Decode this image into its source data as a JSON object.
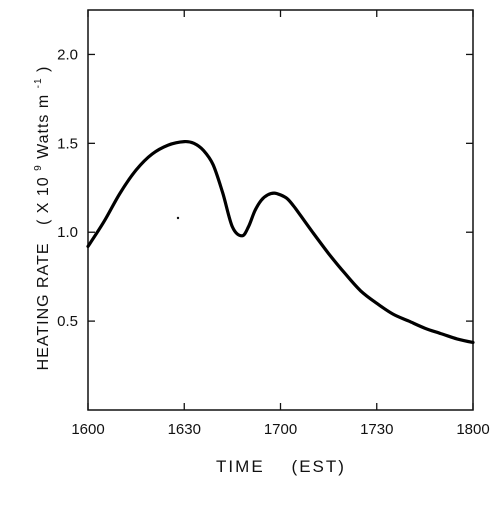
{
  "chart_data": {
    "type": "line",
    "title": "",
    "xlabel": "TIME    (EST)",
    "ylabel": "HEATING RATE",
    "ylabel_units_prefix": "( X 10",
    "ylabel_units_exp": "9",
    "ylabel_units_mid": " Watts m",
    "ylabel_units_exp2": "-1",
    "ylabel_units_suffix": ")",
    "xlim": [
      "1600",
      "1800"
    ],
    "ylim": [
      0,
      2.25
    ],
    "grid": false,
    "x_ticks": [
      "1600",
      "1630",
      "1700",
      "1730",
      "1800"
    ],
    "y_ticks": [
      0.5,
      1.0,
      1.5,
      2.0
    ],
    "y_tick_labels": [
      "0.5",
      "1.0",
      "1.5",
      "2.0"
    ],
    "series": [
      {
        "x": [
          "1600",
          "1605",
          "1610",
          "1615",
          "1620",
          "1625",
          "1630",
          "1633",
          "1636",
          "1639",
          "1642",
          "1645",
          "1648",
          "1650",
          "1652",
          "1654",
          "1656",
          "1658",
          "1700",
          "1702",
          "1704",
          "1706",
          "1710",
          "1715",
          "1720",
          "1725",
          "1730",
          "1735",
          "1740",
          "1745",
          "1750",
          "1755",
          "1800"
        ],
        "y": [
          0.92,
          1.06,
          1.22,
          1.35,
          1.44,
          1.49,
          1.51,
          1.5,
          1.46,
          1.38,
          1.22,
          1.03,
          0.98,
          1.03,
          1.12,
          1.18,
          1.21,
          1.22,
          1.21,
          1.19,
          1.15,
          1.1,
          1.0,
          0.88,
          0.77,
          0.67,
          0.6,
          0.54,
          0.5,
          0.46,
          0.43,
          0.4,
          0.38
        ]
      }
    ],
    "line_color": "#000000"
  }
}
